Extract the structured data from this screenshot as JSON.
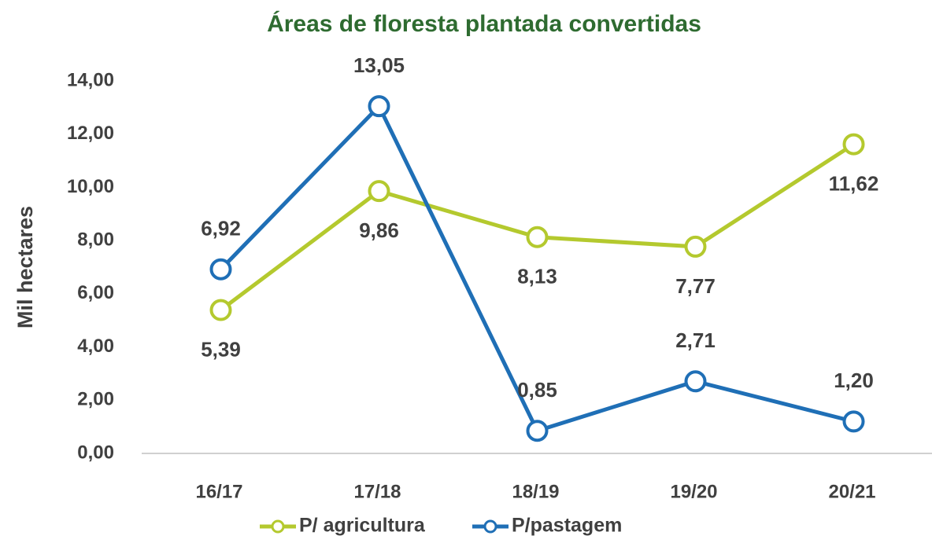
{
  "chart_data": {
    "type": "line",
    "title": "Áreas de floresta plantada convertidas",
    "y_label": "Mil hectares",
    "categories": [
      "16/17",
      "17/18",
      "18/19",
      "19/20",
      "20/21"
    ],
    "series": [
      {
        "name": "P/ agricultura",
        "color": "#b4c92e",
        "values": [
          5.39,
          9.86,
          8.13,
          7.77,
          11.62
        ],
        "value_labels": [
          "5,39",
          "9,86",
          "8,13",
          "7,77",
          "11,62"
        ]
      },
      {
        "name": "P/pastagem",
        "color": "#1f6fb6",
        "values": [
          6.92,
          13.05,
          0.85,
          2.71,
          1.2
        ],
        "value_labels": [
          "6,92",
          "13,05",
          "0,85",
          "2,71",
          "1,20"
        ]
      }
    ],
    "ylim": [
      0,
      14
    ],
    "yticks": [
      {
        "value": 0,
        "label": "0,00"
      },
      {
        "value": 2,
        "label": "2,00"
      },
      {
        "value": 4,
        "label": "4,00"
      },
      {
        "value": 6,
        "label": "6,00"
      },
      {
        "value": 8,
        "label": "8,00"
      },
      {
        "value": 10,
        "label": "10,00"
      },
      {
        "value": 12,
        "label": "12,00"
      },
      {
        "value": 14,
        "label": "14,00"
      }
    ],
    "grid": false,
    "legend": "bottom"
  }
}
